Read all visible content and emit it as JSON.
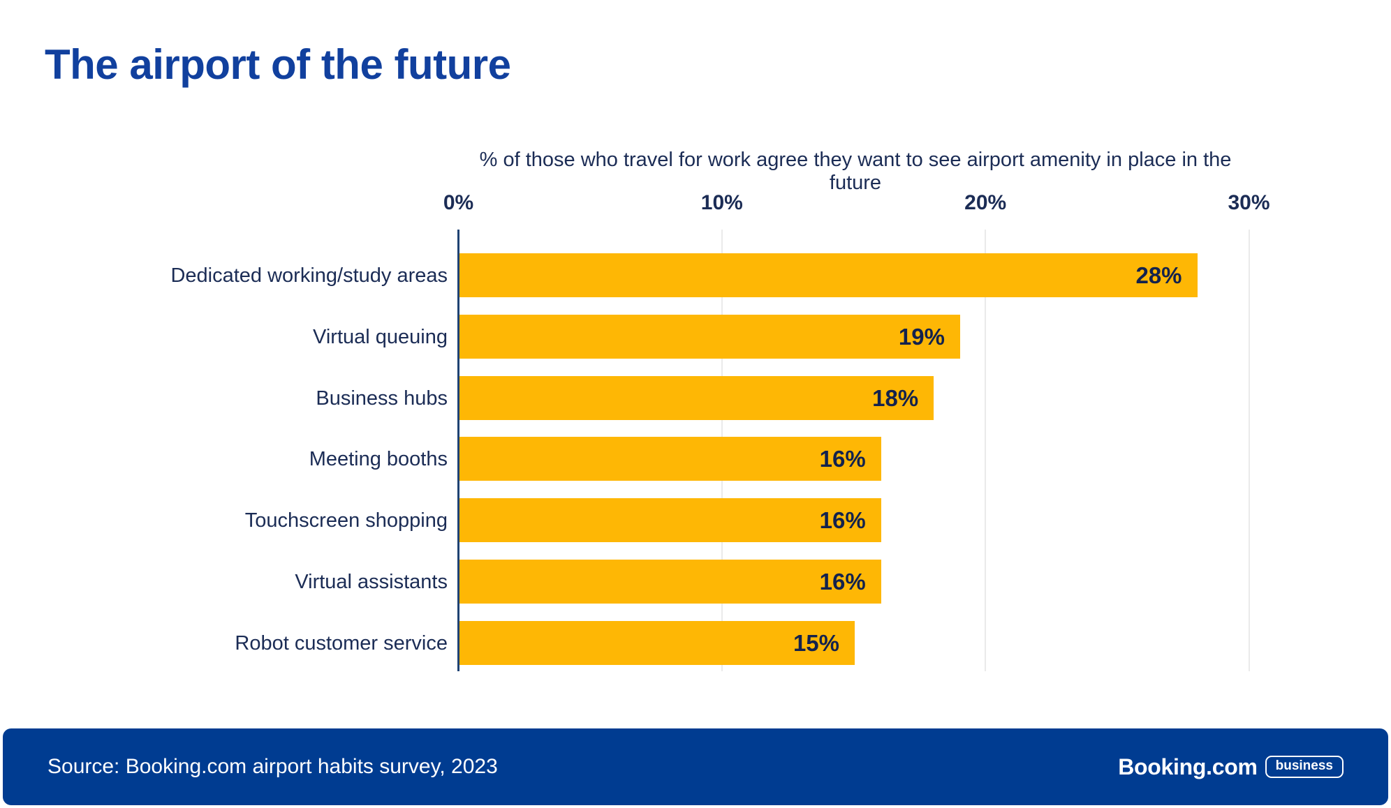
{
  "page": {
    "title": "The airport of the future"
  },
  "chart": {
    "subtitle": "% of those who travel for work agree they want to see airport amenity in place in the future"
  },
  "chart_data": {
    "type": "bar",
    "orientation": "horizontal",
    "title": "The airport of the future",
    "axis_title": "% of those who travel for work agree they want to see airport amenity in place in the future",
    "categories": [
      "Dedicated working/study areas",
      "Virtual queuing",
      "Business hubs",
      "Meeting booths",
      "Touchscreen shopping",
      "Virtual assistants",
      "Robot customer service"
    ],
    "values": [
      28,
      19,
      18,
      16,
      16,
      16,
      15
    ],
    "value_labels": [
      "28%",
      "19%",
      "18%",
      "16%",
      "16%",
      "16%",
      "15%"
    ],
    "xlim": [
      0,
      30
    ],
    "x_tick_values": [
      0,
      10,
      20,
      30
    ],
    "x_ticks": [
      "0%",
      "10%",
      "20%",
      "30%"
    ],
    "grid": true,
    "legend": false,
    "bar_color": "#FEB705",
    "text_color": "#1B2C55",
    "value_label_color": "#13224D",
    "axis_line_color": "#1F4273",
    "gridline_color": "#EAEAEA"
  },
  "footer": {
    "source": "Source: Booking.com airport habits survey, 2023",
    "logo_text": "Booking.com",
    "logo_badge": "business",
    "background": "#003C91"
  },
  "colors": {
    "title_blue": "#11409E",
    "footer_blue": "#003C91",
    "bar_yellow": "#FEB705",
    "text_navy": "#1B2C55"
  }
}
